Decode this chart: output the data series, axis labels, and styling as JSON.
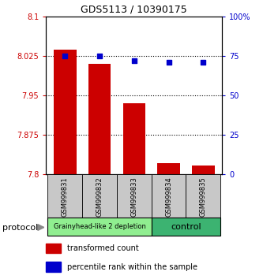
{
  "title": "GDS5113 / 10390175",
  "samples": [
    "GSM999831",
    "GSM999832",
    "GSM999833",
    "GSM999834",
    "GSM999835"
  ],
  "transformed_counts": [
    8.037,
    8.01,
    7.935,
    7.822,
    7.817
  ],
  "percentile_ranks": [
    75,
    75,
    72,
    71,
    71
  ],
  "ylim_left": [
    7.8,
    8.1
  ],
  "ylim_right": [
    0,
    100
  ],
  "yticks_left": [
    7.8,
    7.875,
    7.95,
    8.025,
    8.1
  ],
  "ytick_labels_left": [
    "7.8",
    "7.875",
    "7.95",
    "8.025",
    "8.1"
  ],
  "yticks_right": [
    0,
    25,
    50,
    75,
    100
  ],
  "ytick_labels_right": [
    "0",
    "25",
    "50",
    "75",
    "100%"
  ],
  "groups": [
    {
      "label": "Grainyhead-like 2 depletion",
      "color": "#90ee90",
      "samples": [
        0,
        1,
        2
      ]
    },
    {
      "label": "control",
      "color": "#3cb371",
      "samples": [
        3,
        4
      ]
    }
  ],
  "bar_color": "#cc0000",
  "dot_color": "#0000cc",
  "bar_width": 0.65,
  "grid_color": "#000000",
  "background_color": "#ffffff",
  "tick_color_left": "#cc0000",
  "tick_color_right": "#0000cc",
  "xlabel_bg": "#c8c8c8",
  "protocol_label": "protocol",
  "legend_items": [
    {
      "color": "#cc0000",
      "label": "transformed count"
    },
    {
      "color": "#0000cc",
      "label": "percentile rank within the sample"
    }
  ]
}
